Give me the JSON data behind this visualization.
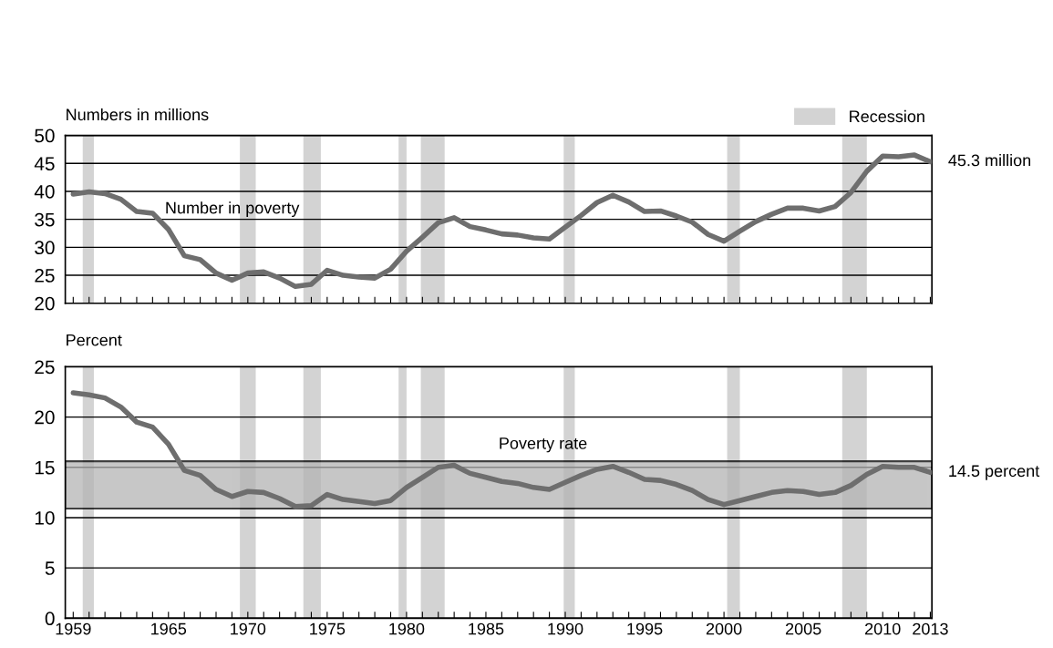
{
  "chart_data": [
    {
      "type": "line",
      "ylabel": "Numbers in millions",
      "legend": "top right",
      "grid": "y",
      "tick_labels": "y",
      "x": [
        1959,
        1960,
        1961,
        1962,
        1963,
        1964,
        1965,
        1966,
        1967,
        1968,
        1969,
        1970,
        1971,
        1972,
        1973,
        1974,
        1975,
        1976,
        1977,
        1978,
        1979,
        1980,
        1981,
        1982,
        1983,
        1984,
        1985,
        1986,
        1987,
        1988,
        1989,
        1990,
        1991,
        1992,
        1993,
        1994,
        1995,
        1996,
        1997,
        1998,
        1999,
        2000,
        2001,
        2002,
        2003,
        2004,
        2005,
        2006,
        2007,
        2008,
        2009,
        2010,
        2011,
        2012,
        2013
      ],
      "series": [
        {
          "color": "#6e6e6e",
          "values": [
            39.5,
            39.9,
            39.6,
            38.6,
            36.4,
            36.1,
            33.2,
            28.5,
            27.8,
            25.4,
            24.1,
            25.4,
            25.6,
            24.5,
            23.0,
            23.4,
            25.9,
            25.0,
            24.7,
            24.5,
            26.1,
            29.3,
            31.8,
            34.4,
            35.3,
            33.7,
            33.1,
            32.4,
            32.2,
            31.7,
            31.5,
            33.6,
            35.7,
            38.0,
            39.3,
            38.1,
            36.4,
            36.5,
            35.6,
            34.5,
            32.3,
            31.1,
            32.9,
            34.6,
            35.9,
            37.0,
            37.0,
            36.5,
            37.3,
            39.8,
            43.6,
            46.3,
            46.2,
            46.5,
            45.3
          ]
        }
      ],
      "xlim": [
        1958.5,
        2013.1
      ],
      "ylim": [
        20,
        50
      ],
      "yticks": [
        20,
        25,
        30,
        35,
        40,
        45,
        50
      ],
      "xticks": [
        1959,
        {
          "value": 1960,
          "label": null
        },
        {
          "value": 1961,
          "label": null
        },
        {
          "value": 1962,
          "label": null
        },
        {
          "value": 1963,
          "label": null
        },
        {
          "value": 1964,
          "label": null
        },
        1965,
        {
          "value": 1966,
          "label": null
        },
        {
          "value": 1967,
          "label": null
        },
        {
          "value": 1968,
          "label": null
        },
        {
          "value": 1969,
          "label": null
        },
        1970,
        {
          "value": 1971,
          "label": null
        },
        {
          "value": 1972,
          "label": null
        },
        {
          "value": 1973,
          "label": null
        },
        {
          "value": 1974,
          "label": null
        },
        1975,
        {
          "value": 1976,
          "label": null
        },
        {
          "value": 1977,
          "label": null
        },
        {
          "value": 1978,
          "label": null
        },
        {
          "value": 1979,
          "label": null
        },
        1980,
        {
          "value": 1981,
          "label": null
        },
        {
          "value": 1982,
          "label": null
        },
        {
          "value": 1983,
          "label": null
        },
        {
          "value": 1984,
          "label": null
        },
        1985,
        {
          "value": 1986,
          "label": null
        },
        {
          "value": 1987,
          "label": null
        },
        {
          "value": 1988,
          "label": null
        },
        {
          "value": 1989,
          "label": null
        },
        1990,
        {
          "value": 1991,
          "label": null
        },
        {
          "value": 1992,
          "label": null
        },
        {
          "value": 1993,
          "label": null
        },
        {
          "value": 1994,
          "label": null
        },
        1995,
        {
          "value": 1996,
          "label": null
        },
        {
          "value": 1997,
          "label": null
        },
        {
          "value": 1998,
          "label": null
        },
        {
          "value": 1999,
          "label": null
        },
        2000,
        {
          "value": 2001,
          "label": null
        },
        {
          "value": 2002,
          "label": null
        },
        {
          "value": 2003,
          "label": null
        },
        {
          "value": 2004,
          "label": null
        },
        2005,
        {
          "value": 2006,
          "label": null
        },
        {
          "value": 2007,
          "label": null
        },
        {
          "value": 2008,
          "label": null
        },
        {
          "value": 2009,
          "label": null
        },
        2010,
        {
          "value": 2011,
          "label": null
        },
        {
          "value": 2012,
          "label": null
        },
        2013
      ],
      "bands": [
        {
          "axis": "x",
          "from": 1959.6,
          "to": 1960.3,
          "label": "Recession",
          "color": "#d3d3d3"
        },
        {
          "axis": "x",
          "from": 1969.5,
          "to": 1970.5,
          "color": "#d3d3d3"
        },
        {
          "axis": "x",
          "from": 1973.5,
          "to": 1974.6,
          "color": "#d3d3d3"
        },
        {
          "axis": "x",
          "from": 1979.5,
          "to": 1980.0,
          "color": "#d3d3d3"
        },
        {
          "axis": "x",
          "from": 1980.9,
          "to": 1982.4,
          "color": "#d3d3d3"
        },
        {
          "axis": "x",
          "from": 1989.9,
          "to": 1990.6,
          "color": "#d3d3d3"
        },
        {
          "axis": "x",
          "from": 2000.2,
          "to": 2001.0,
          "color": "#d3d3d3"
        },
        {
          "axis": "x",
          "from": 2007.45,
          "to": 2009.0,
          "color": "#d3d3d3"
        }
      ],
      "annotations": [
        "Number in poverty",
        {
          "text": "45.3 million",
          "x": 2013,
          "y": 45.3
        }
      ]
    },
    {
      "type": "line",
      "ylabel": "Percent",
      "grid": "y",
      "x": [
        1959,
        1960,
        1961,
        1962,
        1963,
        1964,
        1965,
        1966,
        1967,
        1968,
        1969,
        1970,
        1971,
        1972,
        1973,
        1974,
        1975,
        1976,
        1977,
        1978,
        1979,
        1980,
        1981,
        1982,
        1983,
        1984,
        1985,
        1986,
        1987,
        1988,
        1989,
        1990,
        1991,
        1992,
        1993,
        1994,
        1995,
        1996,
        1997,
        1998,
        1999,
        2000,
        2001,
        2002,
        2003,
        2004,
        2005,
        2006,
        2007,
        2008,
        2009,
        2010,
        2011,
        2012,
        2013
      ],
      "series": [
        {
          "color": "#6e6e6e",
          "values": [
            22.4,
            22.2,
            21.9,
            21.0,
            19.5,
            19.0,
            17.3,
            14.7,
            14.2,
            12.8,
            12.1,
            12.6,
            12.5,
            11.9,
            11.1,
            11.2,
            12.3,
            11.8,
            11.6,
            11.4,
            11.7,
            13.0,
            14.0,
            15.0,
            15.2,
            14.4,
            14.0,
            13.6,
            13.4,
            13.0,
            12.8,
            13.5,
            14.2,
            14.8,
            15.1,
            14.5,
            13.8,
            13.7,
            13.3,
            12.7,
            11.8,
            11.3,
            11.7,
            12.1,
            12.5,
            12.7,
            12.6,
            12.3,
            12.5,
            13.2,
            14.3,
            15.1,
            15.0,
            15.0,
            14.5
          ]
        }
      ],
      "xlim": [
        1958.5,
        2013.1
      ],
      "ylim": [
        0,
        25
      ],
      "yticks": [
        0,
        5,
        10,
        15,
        20,
        25
      ],
      "xticks": [
        1959,
        {
          "value": 1960,
          "label": null
        },
        {
          "value": 1961,
          "label": null
        },
        {
          "value": 1962,
          "label": null
        },
        {
          "value": 1963,
          "label": null
        },
        {
          "value": 1964,
          "label": null
        },
        1965,
        {
          "value": 1966,
          "label": null
        },
        {
          "value": 1967,
          "label": null
        },
        {
          "value": 1968,
          "label": null
        },
        {
          "value": 1969,
          "label": null
        },
        1970,
        {
          "value": 1971,
          "label": null
        },
        {
          "value": 1972,
          "label": null
        },
        {
          "value": 1973,
          "label": null
        },
        {
          "value": 1974,
          "label": null
        },
        1975,
        {
          "value": 1976,
          "label": null
        },
        {
          "value": 1977,
          "label": null
        },
        {
          "value": 1978,
          "label": null
        },
        {
          "value": 1979,
          "label": null
        },
        1980,
        {
          "value": 1981,
          "label": null
        },
        {
          "value": 1982,
          "label": null
        },
        {
          "value": 1983,
          "label": null
        },
        {
          "value": 1984,
          "label": null
        },
        1985,
        {
          "value": 1986,
          "label": null
        },
        {
          "value": 1987,
          "label": null
        },
        {
          "value": 1988,
          "label": null
        },
        {
          "value": 1989,
          "label": null
        },
        1990,
        {
          "value": 1991,
          "label": null
        },
        {
          "value": 1992,
          "label": null
        },
        {
          "value": 1993,
          "label": null
        },
        {
          "value": 1994,
          "label": null
        },
        1995,
        {
          "value": 1996,
          "label": null
        },
        {
          "value": 1997,
          "label": null
        },
        {
          "value": 1998,
          "label": null
        },
        {
          "value": 1999,
          "label": null
        },
        2000,
        {
          "value": 2001,
          "label": null
        },
        {
          "value": 2002,
          "label": null
        },
        {
          "value": 2003,
          "label": null
        },
        {
          "value": 2004,
          "label": null
        },
        2005,
        {
          "value": 2006,
          "label": null
        },
        {
          "value": 2007,
          "label": null
        },
        {
          "value": 2008,
          "label": null
        },
        {
          "value": 2009,
          "label": null
        },
        2010,
        {
          "value": 2011,
          "label": null
        },
        {
          "value": 2012,
          "label": null
        },
        2013
      ],
      "bands": [
        {
          "axis": "x",
          "from": 1959.6,
          "to": 1960.3,
          "color": "#d3d3d3"
        },
        {
          "axis": "x",
          "from": 1969.5,
          "to": 1970.5,
          "color": "#d3d3d3"
        },
        {
          "axis": "x",
          "from": 1973.5,
          "to": 1974.6,
          "color": "#d3d3d3"
        },
        {
          "axis": "x",
          "from": 1979.5,
          "to": 1980.0,
          "color": "#d3d3d3"
        },
        {
          "axis": "x",
          "from": 1980.9,
          "to": 1982.4,
          "color": "#d3d3d3"
        },
        {
          "axis": "x",
          "from": 1989.9,
          "to": 1990.6,
          "color": "#d3d3d3"
        },
        {
          "axis": "x",
          "from": 2000.2,
          "to": 2001.0,
          "color": "#d3d3d3"
        },
        {
          "axis": "x",
          "from": 2007.45,
          "to": 2009.0,
          "color": "#d3d3d3"
        },
        {
          "axis": "y",
          "from": 10.9,
          "to": 15.6,
          "color": "#b4b4b4"
        }
      ],
      "annotations": [
        "Poverty rate",
        {
          "text": "14.5 percent",
          "x": 2013,
          "y": 14.5
        }
      ]
    }
  ]
}
